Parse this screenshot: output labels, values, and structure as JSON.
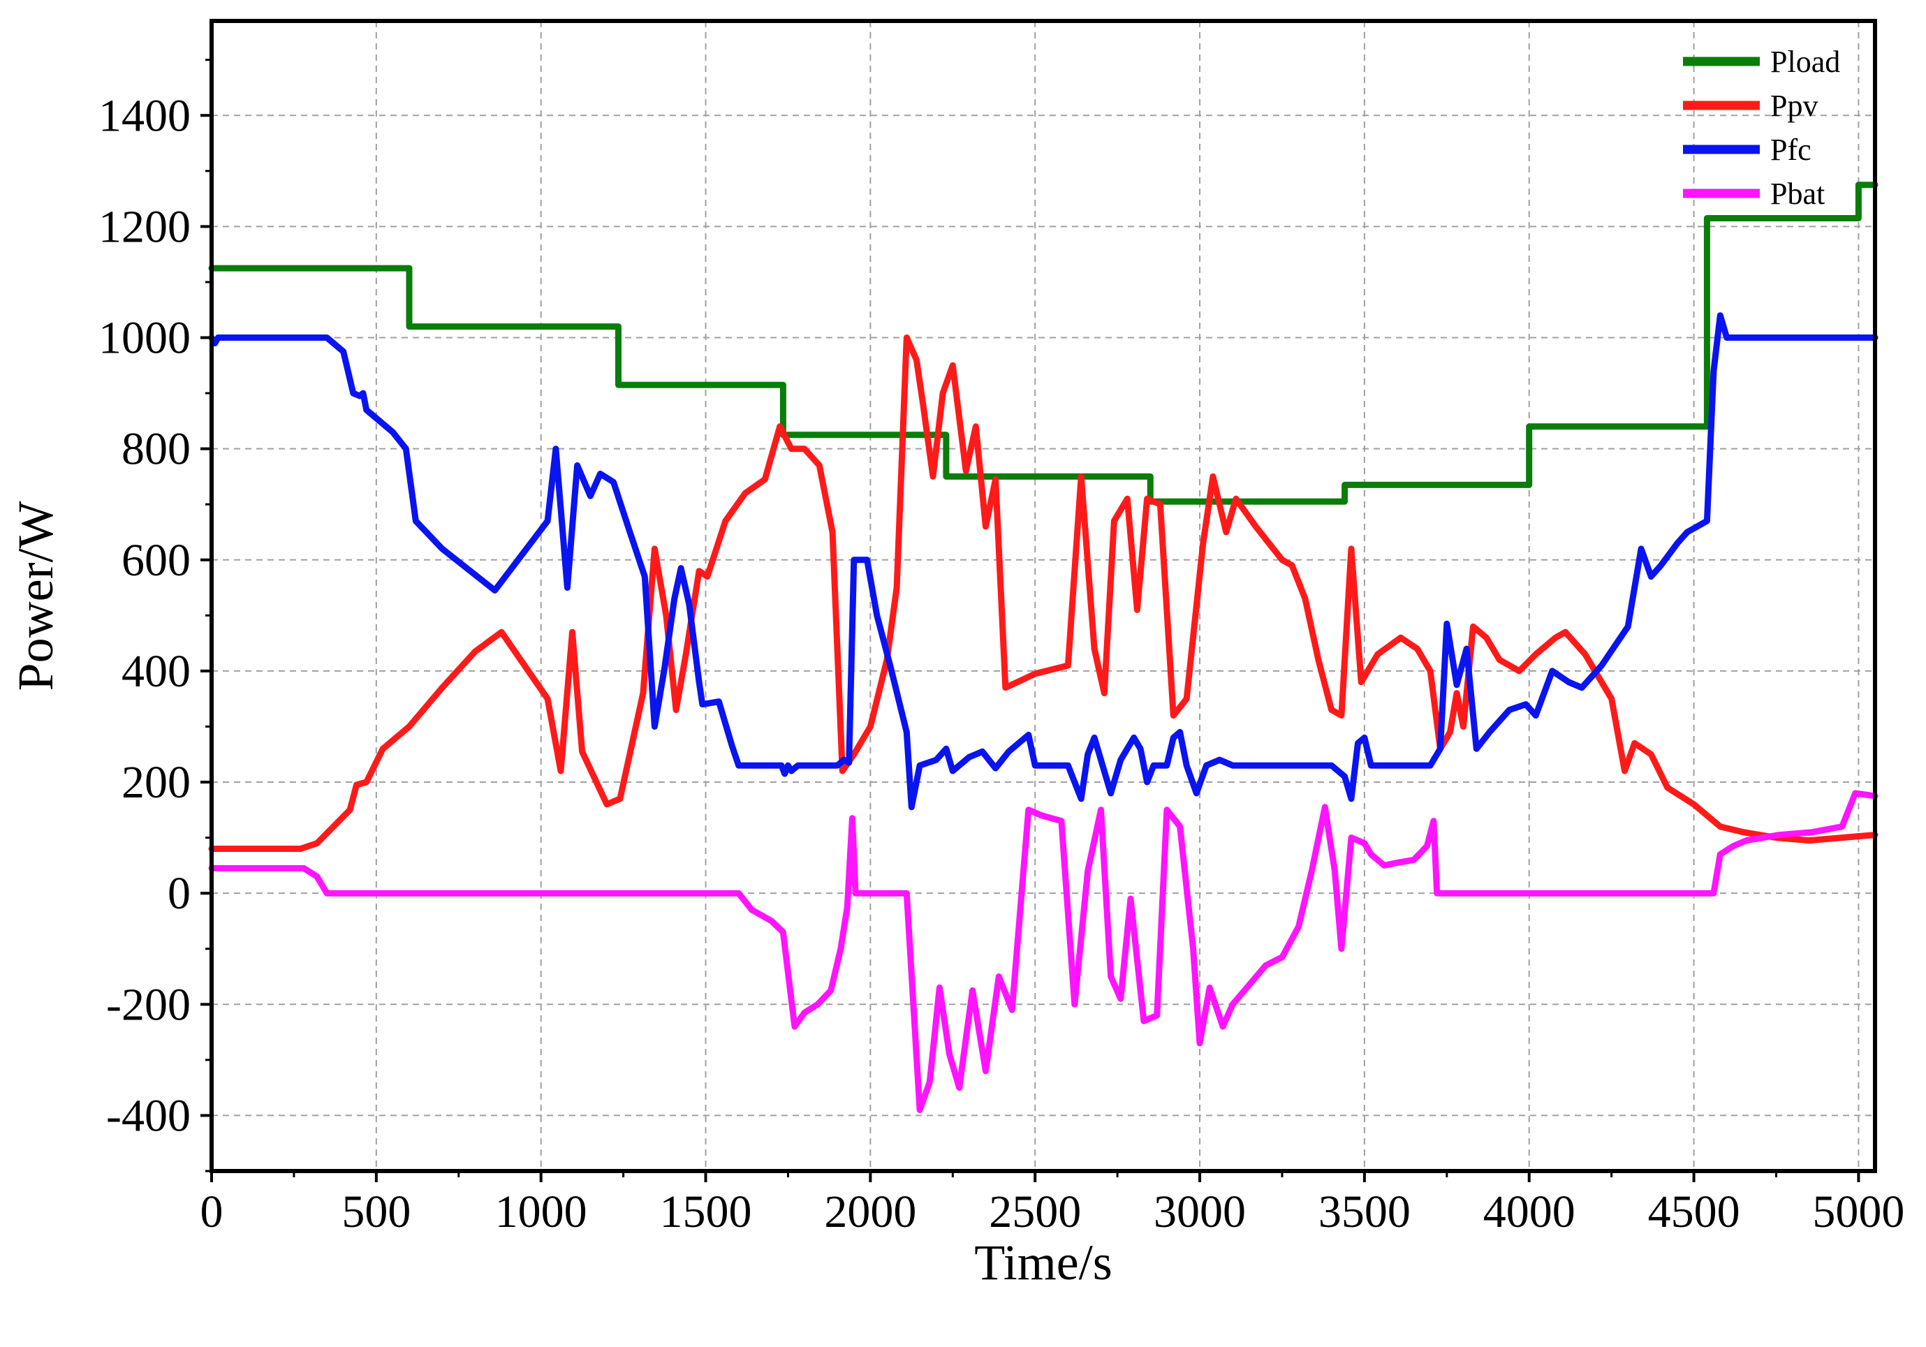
{
  "chart_data": {
    "type": "line",
    "xlabel": "Time/s",
    "ylabel": "Power/W",
    "xlim": [
      0,
      5050
    ],
    "ylim": [
      -500,
      1570
    ],
    "x_ticks": [
      0,
      500,
      1000,
      1500,
      2000,
      2500,
      3000,
      3500,
      4000,
      4500,
      5000
    ],
    "y_ticks": [
      -400,
      -200,
      0,
      200,
      400,
      600,
      800,
      1000,
      1200,
      1400
    ],
    "grid": true,
    "legend_position": "top-right",
    "series": [
      {
        "name": "Pload",
        "color": "#0a7d0a",
        "points": [
          [
            0,
            1125
          ],
          [
            600,
            1125
          ],
          [
            600,
            1020
          ],
          [
            1235,
            1020
          ],
          [
            1235,
            915
          ],
          [
            1735,
            915
          ],
          [
            1735,
            825
          ],
          [
            2230,
            825
          ],
          [
            2230,
            750
          ],
          [
            2850,
            750
          ],
          [
            2850,
            705
          ],
          [
            3440,
            705
          ],
          [
            3440,
            735
          ],
          [
            4000,
            735
          ],
          [
            4000,
            840
          ],
          [
            4540,
            840
          ],
          [
            4540,
            1215
          ],
          [
            5000,
            1215
          ],
          [
            5000,
            1275
          ],
          [
            5050,
            1275
          ]
        ]
      },
      {
        "name": "Ppv",
        "color": "#ff1a1a",
        "points": [
          [
            0,
            80
          ],
          [
            270,
            80
          ],
          [
            320,
            90
          ],
          [
            420,
            150
          ],
          [
            440,
            195
          ],
          [
            470,
            200
          ],
          [
            520,
            260
          ],
          [
            600,
            300
          ],
          [
            700,
            370
          ],
          [
            800,
            435
          ],
          [
            880,
            470
          ],
          [
            1020,
            350
          ],
          [
            1060,
            220
          ],
          [
            1095,
            470
          ],
          [
            1125,
            255
          ],
          [
            1200,
            160
          ],
          [
            1240,
            170
          ],
          [
            1310,
            360
          ],
          [
            1345,
            620
          ],
          [
            1380,
            500
          ],
          [
            1410,
            330
          ],
          [
            1440,
            430
          ],
          [
            1480,
            580
          ],
          [
            1505,
            570
          ],
          [
            1560,
            670
          ],
          [
            1620,
            720
          ],
          [
            1680,
            745
          ],
          [
            1725,
            840
          ],
          [
            1760,
            800
          ],
          [
            1800,
            800
          ],
          [
            1845,
            770
          ],
          [
            1885,
            650
          ],
          [
            1915,
            220
          ],
          [
            1950,
            250
          ],
          [
            2000,
            300
          ],
          [
            2050,
            420
          ],
          [
            2080,
            550
          ],
          [
            2110,
            1000
          ],
          [
            2140,
            960
          ],
          [
            2160,
            880
          ],
          [
            2190,
            750
          ],
          [
            2220,
            900
          ],
          [
            2250,
            950
          ],
          [
            2290,
            760
          ],
          [
            2320,
            840
          ],
          [
            2350,
            660
          ],
          [
            2380,
            745
          ],
          [
            2410,
            370
          ],
          [
            2500,
            395
          ],
          [
            2600,
            410
          ],
          [
            2640,
            750
          ],
          [
            2680,
            440
          ],
          [
            2710,
            360
          ],
          [
            2740,
            670
          ],
          [
            2780,
            710
          ],
          [
            2810,
            510
          ],
          [
            2840,
            710
          ],
          [
            2880,
            700
          ],
          [
            2920,
            320
          ],
          [
            2960,
            350
          ],
          [
            3010,
            630
          ],
          [
            3040,
            750
          ],
          [
            3080,
            650
          ],
          [
            3110,
            710
          ],
          [
            3170,
            660
          ],
          [
            3210,
            630
          ],
          [
            3250,
            600
          ],
          [
            3280,
            590
          ],
          [
            3320,
            530
          ],
          [
            3360,
            420
          ],
          [
            3400,
            330
          ],
          [
            3430,
            320
          ],
          [
            3460,
            620
          ],
          [
            3490,
            380
          ],
          [
            3540,
            430
          ],
          [
            3610,
            460
          ],
          [
            3660,
            440
          ],
          [
            3700,
            400
          ],
          [
            3730,
            260
          ],
          [
            3760,
            290
          ],
          [
            3780,
            360
          ],
          [
            3800,
            300
          ],
          [
            3830,
            480
          ],
          [
            3870,
            460
          ],
          [
            3910,
            420
          ],
          [
            3970,
            400
          ],
          [
            4020,
            430
          ],
          [
            4080,
            460
          ],
          [
            4110,
            470
          ],
          [
            4170,
            430
          ],
          [
            4250,
            350
          ],
          [
            4290,
            220
          ],
          [
            4320,
            270
          ],
          [
            4370,
            250
          ],
          [
            4420,
            190
          ],
          [
            4500,
            160
          ],
          [
            4580,
            120
          ],
          [
            4650,
            110
          ],
          [
            4750,
            100
          ],
          [
            4850,
            95
          ],
          [
            4950,
            100
          ],
          [
            5050,
            105
          ]
        ]
      },
      {
        "name": "Pfc",
        "color": "#0a14f0",
        "points": [
          [
            0,
            1000
          ],
          [
            10,
            990
          ],
          [
            20,
            1000
          ],
          [
            350,
            1000
          ],
          [
            400,
            975
          ],
          [
            430,
            900
          ],
          [
            450,
            895
          ],
          [
            460,
            900
          ],
          [
            470,
            870
          ],
          [
            550,
            830
          ],
          [
            590,
            800
          ],
          [
            620,
            670
          ],
          [
            700,
            620
          ],
          [
            860,
            545
          ],
          [
            1020,
            670
          ],
          [
            1045,
            800
          ],
          [
            1080,
            550
          ],
          [
            1110,
            770
          ],
          [
            1150,
            715
          ],
          [
            1180,
            755
          ],
          [
            1220,
            740
          ],
          [
            1270,
            650
          ],
          [
            1315,
            570
          ],
          [
            1345,
            300
          ],
          [
            1375,
            405
          ],
          [
            1405,
            530
          ],
          [
            1425,
            585
          ],
          [
            1450,
            520
          ],
          [
            1480,
            380
          ],
          [
            1490,
            340
          ],
          [
            1540,
            345
          ],
          [
            1580,
            265
          ],
          [
            1600,
            230
          ],
          [
            1730,
            230
          ],
          [
            1740,
            215
          ],
          [
            1750,
            230
          ],
          [
            1760,
            220
          ],
          [
            1780,
            230
          ],
          [
            1900,
            230
          ],
          [
            1920,
            240
          ],
          [
            1935,
            235
          ],
          [
            1950,
            600
          ],
          [
            1990,
            600
          ],
          [
            2020,
            500
          ],
          [
            2060,
            410
          ],
          [
            2110,
            290
          ],
          [
            2125,
            155
          ],
          [
            2140,
            200
          ],
          [
            2150,
            230
          ],
          [
            2200,
            240
          ],
          [
            2230,
            260
          ],
          [
            2250,
            220
          ],
          [
            2300,
            245
          ],
          [
            2340,
            255
          ],
          [
            2380,
            225
          ],
          [
            2420,
            255
          ],
          [
            2460,
            275
          ],
          [
            2480,
            285
          ],
          [
            2500,
            230
          ],
          [
            2600,
            230
          ],
          [
            2640,
            170
          ],
          [
            2660,
            250
          ],
          [
            2680,
            280
          ],
          [
            2700,
            240
          ],
          [
            2730,
            180
          ],
          [
            2760,
            240
          ],
          [
            2800,
            280
          ],
          [
            2820,
            260
          ],
          [
            2840,
            200
          ],
          [
            2860,
            230
          ],
          [
            2900,
            230
          ],
          [
            2920,
            280
          ],
          [
            2940,
            290
          ],
          [
            2960,
            230
          ],
          [
            2990,
            180
          ],
          [
            3020,
            230
          ],
          [
            3060,
            240
          ],
          [
            3100,
            230
          ],
          [
            3400,
            230
          ],
          [
            3440,
            210
          ],
          [
            3460,
            170
          ],
          [
            3480,
            270
          ],
          [
            3500,
            280
          ],
          [
            3520,
            230
          ],
          [
            3700,
            230
          ],
          [
            3730,
            260
          ],
          [
            3750,
            485
          ],
          [
            3780,
            375
          ],
          [
            3810,
            440
          ],
          [
            3840,
            260
          ],
          [
            3880,
            290
          ],
          [
            3940,
            330
          ],
          [
            3990,
            340
          ],
          [
            4020,
            320
          ],
          [
            4070,
            400
          ],
          [
            4120,
            380
          ],
          [
            4160,
            370
          ],
          [
            4220,
            410
          ],
          [
            4300,
            480
          ],
          [
            4340,
            620
          ],
          [
            4370,
            570
          ],
          [
            4400,
            590
          ],
          [
            4450,
            630
          ],
          [
            4480,
            650
          ],
          [
            4540,
            670
          ],
          [
            4560,
            940
          ],
          [
            4580,
            1040
          ],
          [
            4600,
            1000
          ],
          [
            5050,
            1000
          ]
        ]
      },
      {
        "name": "Pbat",
        "color": "#ff14ff",
        "points": [
          [
            0,
            45
          ],
          [
            280,
            45
          ],
          [
            320,
            30
          ],
          [
            350,
            0
          ],
          [
            1600,
            0
          ],
          [
            1640,
            -30
          ],
          [
            1700,
            -50
          ],
          [
            1735,
            -70
          ],
          [
            1770,
            -240
          ],
          [
            1800,
            -215
          ],
          [
            1840,
            -200
          ],
          [
            1880,
            -175
          ],
          [
            1910,
            -100
          ],
          [
            1930,
            -25
          ],
          [
            1945,
            135
          ],
          [
            1955,
            0
          ],
          [
            2110,
            0
          ],
          [
            2150,
            -390
          ],
          [
            2180,
            -340
          ],
          [
            2210,
            -170
          ],
          [
            2240,
            -290
          ],
          [
            2270,
            -350
          ],
          [
            2310,
            -175
          ],
          [
            2350,
            -320
          ],
          [
            2390,
            -150
          ],
          [
            2430,
            -210
          ],
          [
            2480,
            150
          ],
          [
            2520,
            140
          ],
          [
            2580,
            130
          ],
          [
            2620,
            -200
          ],
          [
            2660,
            40
          ],
          [
            2700,
            150
          ],
          [
            2730,
            -150
          ],
          [
            2760,
            -190
          ],
          [
            2790,
            -10
          ],
          [
            2830,
            -230
          ],
          [
            2870,
            -220
          ],
          [
            2900,
            150
          ],
          [
            2940,
            120
          ],
          [
            2980,
            -100
          ],
          [
            3000,
            -270
          ],
          [
            3030,
            -170
          ],
          [
            3070,
            -240
          ],
          [
            3100,
            -200
          ],
          [
            3150,
            -165
          ],
          [
            3200,
            -130
          ],
          [
            3250,
            -115
          ],
          [
            3300,
            -60
          ],
          [
            3340,
            40
          ],
          [
            3380,
            155
          ],
          [
            3410,
            40
          ],
          [
            3430,
            -100
          ],
          [
            3460,
            100
          ],
          [
            3500,
            90
          ],
          [
            3520,
            70
          ],
          [
            3560,
            50
          ],
          [
            3600,
            55
          ],
          [
            3650,
            60
          ],
          [
            3690,
            85
          ],
          [
            3710,
            130
          ],
          [
            3720,
            0
          ],
          [
            4560,
            0
          ],
          [
            4580,
            70
          ],
          [
            4620,
            85
          ],
          [
            4660,
            95
          ],
          [
            4760,
            105
          ],
          [
            4860,
            110
          ],
          [
            4950,
            120
          ],
          [
            4970,
            150
          ],
          [
            4990,
            180
          ],
          [
            5050,
            175
          ]
        ]
      }
    ]
  }
}
